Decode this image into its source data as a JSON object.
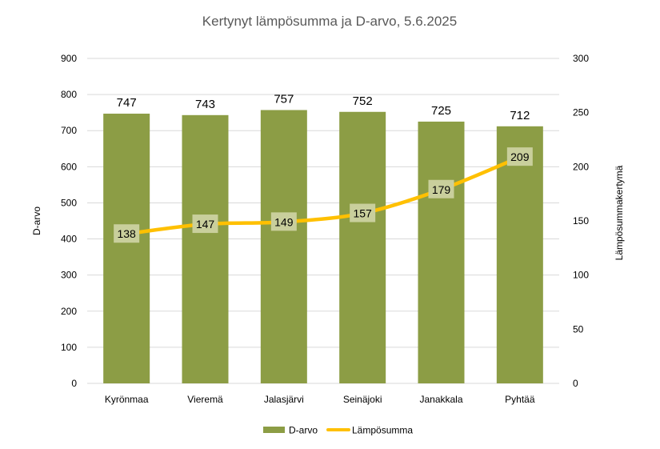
{
  "chart_data": {
    "type": "bar",
    "title": "Kertynyt lämpösumma ja D-arvo, 5.6.2025",
    "categories": [
      "Kyrönmaa",
      "Vieremä",
      "Jalasjärvi",
      "Seinäjoki",
      "Janakkala",
      "Pyhtää"
    ],
    "ylabel": "D-arvo",
    "y2label": "Lämpösummakertymä",
    "ylim": [
      0,
      900
    ],
    "y2lim": [
      0,
      300
    ],
    "yticks": [
      0,
      100,
      200,
      300,
      400,
      500,
      600,
      700,
      800,
      900
    ],
    "y2ticks": [
      0,
      50,
      100,
      150,
      200,
      250,
      300
    ],
    "grid": true,
    "legend_position": "bottom",
    "series": [
      {
        "name": "D-arvo",
        "type": "bar",
        "axis": "left",
        "color": "#8c9d45",
        "values": [
          747,
          743,
          757,
          752,
          725,
          712
        ]
      },
      {
        "name": "Lämpösumma",
        "type": "line",
        "axis": "right",
        "color": "#ffc000",
        "values": [
          138,
          147,
          149,
          157,
          179,
          209
        ]
      }
    ]
  }
}
